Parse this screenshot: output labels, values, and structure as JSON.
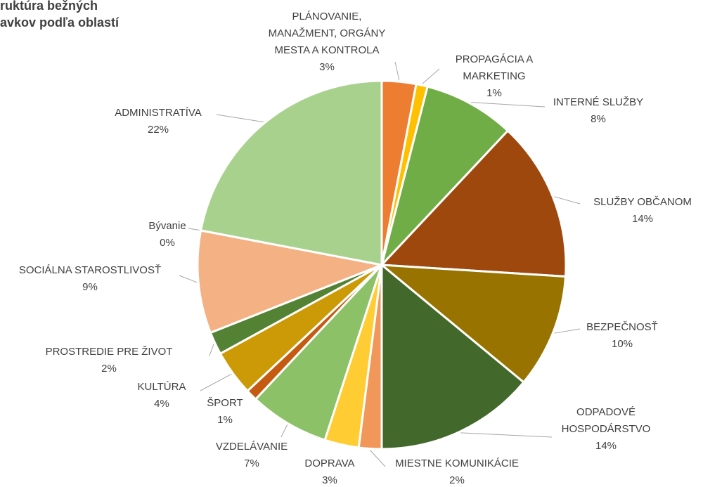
{
  "chart_data": {
    "type": "pie",
    "title": [
      "ruktúra bežných",
      "avkov podľa oblastí"
    ],
    "labels": [
      [
        "PLÁNOVANIE,",
        "MANAŽMENT, ORGÁNY",
        "MESTA A KONTROLA"
      ],
      [
        "PROPAGÁCIA A",
        "MARKETING"
      ],
      [
        "INTERNÉ SLUŽBY"
      ],
      [
        "SLUŽBY OBČANOM"
      ],
      [
        "BEZPEČNOSŤ"
      ],
      [
        "ODPADOVÉ",
        "HOSPODÁRSTVO"
      ],
      [
        "MIESTNE KOMUNIKÁCIE"
      ],
      [
        "DOPRAVA"
      ],
      [
        "VZDELÁVANIE"
      ],
      [
        "ŠPORT"
      ],
      [
        "KULTÚRA"
      ],
      [
        "PROSTREDIE PRE ŽIVOT"
      ],
      [
        "SOCIÁLNA STAROSTLIVOSŤ"
      ],
      [
        "Bývanie"
      ],
      [
        "ADMINISTRATÍVA"
      ]
    ],
    "values": [
      3,
      1,
      8,
      14,
      10,
      14,
      2,
      3,
      7,
      1,
      4,
      2,
      9,
      0,
      22
    ],
    "value_labels": [
      "3%",
      "1%",
      "8%",
      "14%",
      "10%",
      "14%",
      "2%",
      "3%",
      "7%",
      "1%",
      "4%",
      "2%",
      "9%",
      "0%",
      "22%"
    ],
    "colors": [
      "#ED7D31",
      "#FFC000",
      "#70AD47",
      "#9E480E",
      "#997300",
      "#43682B",
      "#F1975A",
      "#FFCD33",
      "#8CC168",
      "#C55A11",
      "#CC9A06",
      "#548235",
      "#F4B183",
      "#264478",
      "#A9D18E"
    ]
  }
}
